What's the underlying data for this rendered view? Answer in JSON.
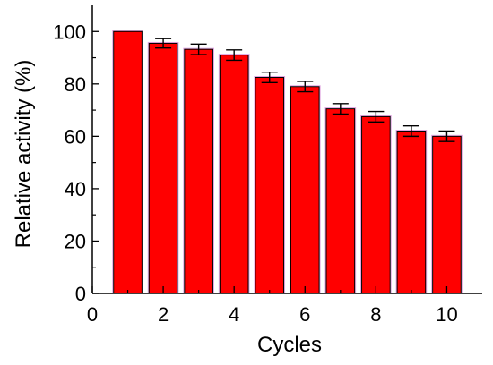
{
  "chart_data": {
    "type": "bar",
    "title": "",
    "xlabel": "Cycles",
    "ylabel": "Relative activity (%)",
    "categories": [
      1,
      2,
      3,
      4,
      5,
      6,
      7,
      8,
      9,
      10
    ],
    "values": [
      100,
      95.5,
      93.2,
      91,
      82.5,
      79,
      70.5,
      67.5,
      62,
      60
    ],
    "errors": [
      0,
      1.8,
      2,
      2,
      2,
      2,
      2,
      2,
      2,
      2
    ],
    "xlim": [
      0,
      11
    ],
    "ylim": [
      0,
      110
    ],
    "x_ticks": [
      0,
      2,
      4,
      6,
      8,
      10
    ],
    "x_tick_labels": [
      "0",
      "2",
      "4",
      "6",
      "8",
      "10"
    ],
    "y_ticks": [
      0,
      20,
      40,
      60,
      80,
      100
    ],
    "y_tick_labels": [
      "0",
      "20",
      "40",
      "60",
      "80",
      "100"
    ],
    "grid": false,
    "legend": "none",
    "colors": {
      "bar_fill": "#ff0000",
      "bar_stroke": "#000000",
      "bar_halo": "#cc66cc",
      "axis": "#000000",
      "text": "#000000"
    }
  }
}
